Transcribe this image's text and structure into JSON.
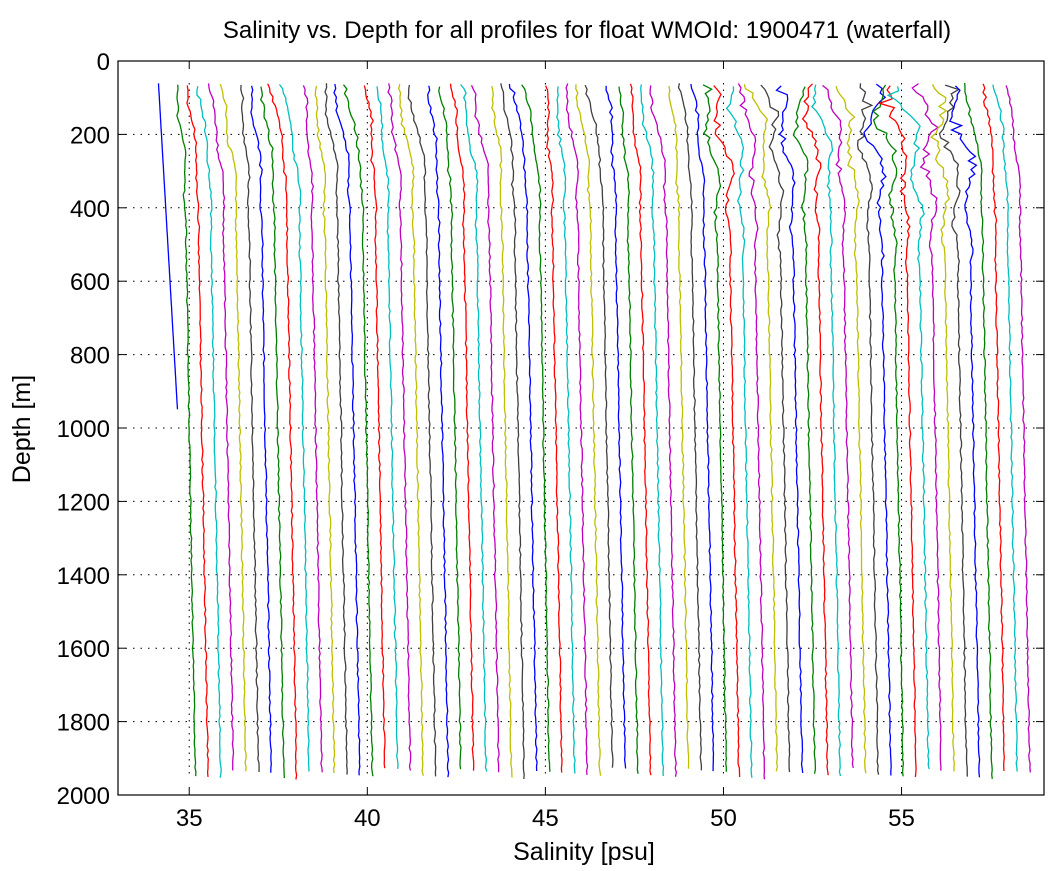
{
  "chart_data": {
    "type": "line",
    "title": "Salinity vs. Depth for all profiles for float WMOId: 1900471 (waterfall)",
    "xlabel": "Salinity [psu]",
    "ylabel": "Depth [m]",
    "xlim": [
      33,
      59
    ],
    "ylim": [
      0,
      2000
    ],
    "y_reversed": true,
    "xticks": [
      35,
      40,
      45,
      50,
      55
    ],
    "yticks": [
      0,
      200,
      400,
      600,
      800,
      1000,
      1200,
      1400,
      1600,
      1800,
      2000
    ],
    "grid": true,
    "legend": "none",
    "reference_lines_dotted": [
      35,
      40,
      45,
      50,
      55
    ],
    "palette": [
      "#0000ff",
      "#008000",
      "#ff0000",
      "#00bfbf",
      "#bf00bf",
      "#bfbf00",
      "#404040"
    ],
    "waterfall": {
      "profile_count": 68,
      "first_offset": 34.1,
      "offset_step": 0.355,
      "surface_depth": 60,
      "bottom_depth": 1960
    },
    "series": [
      {
        "values_shape": [
          [
            60,
            0.0
          ],
          [
            100,
            0.05
          ],
          [
            200,
            0.2
          ],
          [
            400,
            0.3
          ],
          [
            600,
            0.45
          ],
          [
            800,
            0.6
          ],
          [
            950,
            0.7
          ]
        ],
        "depth_max": 950
      },
      {
        "values_shape": [
          [
            60,
            0.5
          ],
          [
            150,
            0.5
          ],
          [
            300,
            0.55
          ],
          [
            600,
            0.6
          ],
          [
            1000,
            0.6
          ],
          [
            1400,
            0.65
          ],
          [
            1960,
            0.7
          ]
        ]
      },
      {
        "values_shape": [
          [
            60,
            0.6
          ],
          [
            200,
            0.62
          ],
          [
            600,
            0.65
          ],
          [
            1200,
            0.66
          ],
          [
            1960,
            0.68
          ]
        ]
      }
    ]
  }
}
